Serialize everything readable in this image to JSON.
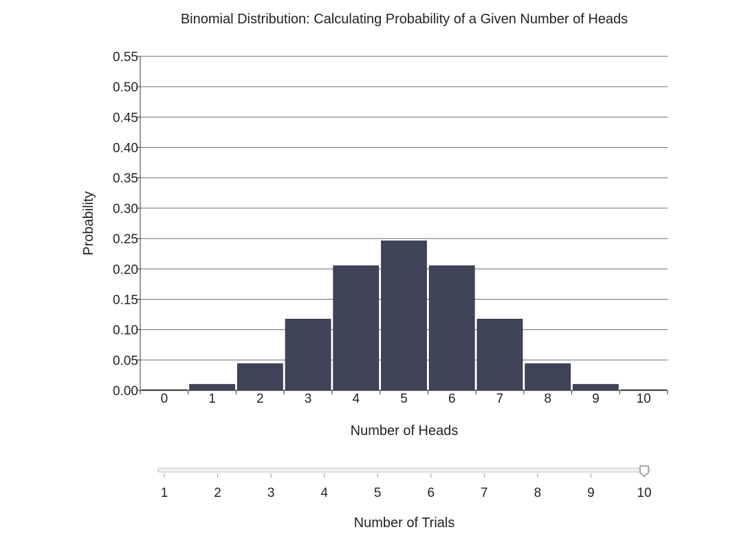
{
  "chart_data": {
    "type": "bar",
    "title": "Binomial Distribution: Calculating Probability of a Given Number of Heads",
    "xlabel": "Number of Heads",
    "ylabel": "Probability",
    "categories": [
      "0",
      "1",
      "2",
      "3",
      "4",
      "5",
      "6",
      "7",
      "8",
      "9",
      "10"
    ],
    "values": [
      0.001,
      0.0098,
      0.0439,
      0.1172,
      0.2051,
      0.2461,
      0.2051,
      0.1172,
      0.0439,
      0.0098,
      0.001
    ],
    "ylim": [
      0,
      0.55
    ],
    "yticks": [
      "0.00",
      "0.05",
      "0.10",
      "0.15",
      "0.20",
      "0.25",
      "0.30",
      "0.35",
      "0.40",
      "0.45",
      "0.50",
      "0.55"
    ],
    "grid": true,
    "bar_color": "#3f4458"
  },
  "slider": {
    "label": "Number of Trials",
    "ticks": [
      "1",
      "2",
      "3",
      "4",
      "5",
      "6",
      "7",
      "8",
      "9",
      "10"
    ],
    "min": 1,
    "max": 10,
    "value": 10
  }
}
